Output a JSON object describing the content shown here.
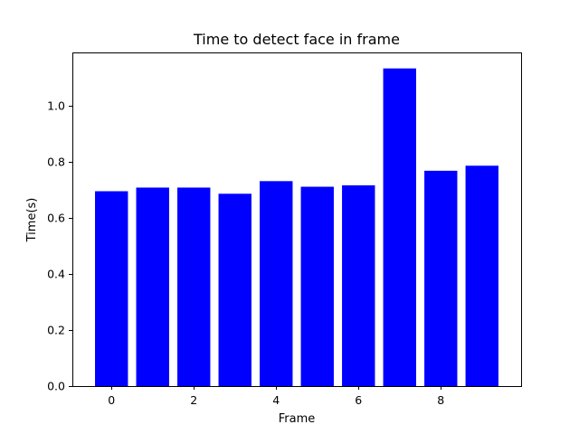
{
  "chart_data": {
    "type": "bar",
    "title": "Time to detect face in frame",
    "xlabel": "Frame",
    "ylabel": "Time(s)",
    "x": [
      0,
      1,
      2,
      3,
      4,
      5,
      6,
      7,
      8,
      9
    ],
    "values": [
      0.695,
      0.708,
      0.708,
      0.686,
      0.731,
      0.711,
      0.716,
      1.133,
      0.768,
      0.786
    ],
    "xlim": [
      -0.95,
      9.95
    ],
    "ylim": [
      0,
      1.19
    ],
    "xticks": [
      0,
      2,
      4,
      6,
      8
    ],
    "xtick_labels": [
      "0",
      "2",
      "4",
      "6",
      "8"
    ],
    "yticks": [
      0.0,
      0.2,
      0.4,
      0.6,
      0.8,
      1.0
    ],
    "ytick_labels": [
      "0.0",
      "0.2",
      "0.4",
      "0.6",
      "0.8",
      "1.0"
    ],
    "bar_color": "#0000ff",
    "grid": false,
    "legend": "none"
  }
}
